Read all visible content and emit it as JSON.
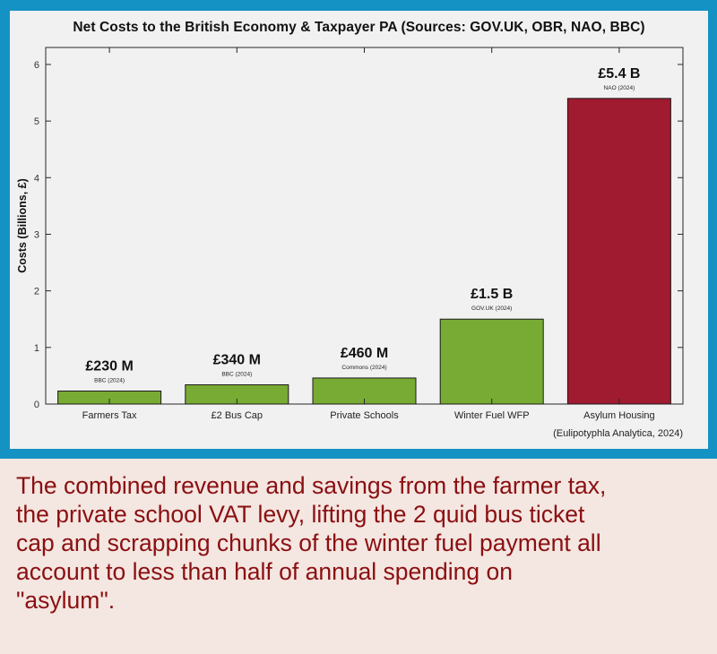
{
  "chart_data": {
    "type": "bar",
    "title": "Net Costs to the British Economy & Taxpayer PA (Sources: GOV.UK, OBR, NAO, BBC)",
    "xlabel": "",
    "ylabel": "Costs (Billions, £)",
    "ylim": [
      0,
      6.3
    ],
    "yticks": [
      "0",
      "1",
      "2",
      "3",
      "4",
      "5",
      "6"
    ],
    "categories": [
      "Farmers Tax",
      "£2 Bus Cap",
      "Private Schools",
      "Winter Fuel WFP",
      "Asylum Housing"
    ],
    "values": [
      0.23,
      0.34,
      0.46,
      1.5,
      5.4
    ],
    "value_labels": [
      "£230 M",
      "£340 M",
      "£460 M",
      "£1.5 B",
      "£5.4 B"
    ],
    "source_labels": [
      "BBC (2024)",
      "BBC (2024)",
      "Commons (2024)",
      "GOV.UK (2024)",
      "NAO (2024)"
    ],
    "bar_colors": [
      "#78ab33",
      "#78ab33",
      "#78ab33",
      "#78ab33",
      "#a01a30"
    ],
    "grid": false,
    "attribution": "(Eulipotyphla Analytica, 2024)"
  },
  "caption": {
    "line1": "The combined revenue and savings from the farmer tax,",
    "line2": "the private school VAT levy, lifting the 2 quid bus ticket",
    "line3": "cap and scrapping chunks of the winter fuel payment all",
    "line4": "account to less than half of annual spending on",
    "line5": "\"asylum\"."
  }
}
